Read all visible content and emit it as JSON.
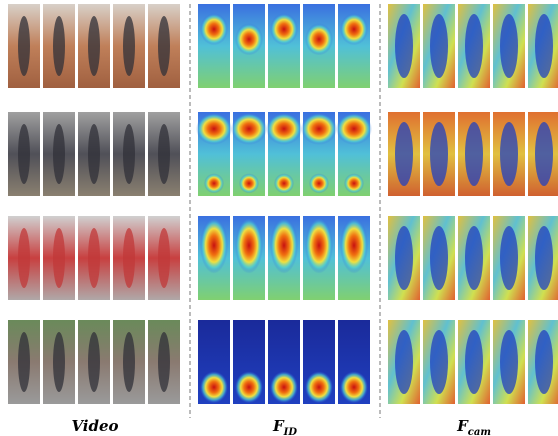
{
  "columns": [
    {
      "label": {
        "main": "Video"
      }
    },
    {
      "label": {
        "main": "F",
        "sub": "ID"
      }
    },
    {
      "label": {
        "main": "F",
        "sub": "cam"
      }
    }
  ]
}
